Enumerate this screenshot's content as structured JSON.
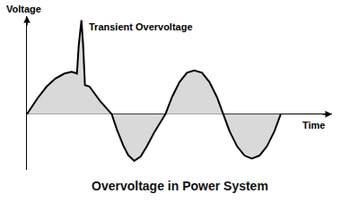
{
  "chart_data": {
    "type": "area",
    "title": "Overvoltage in Power System",
    "x_label": "Time",
    "y_label": "Voltage",
    "annotation": "Transient Overvoltage",
    "x": [
      0,
      0.43,
      0.79,
      1.14,
      1.5,
      1.79,
      2.0,
      2.07,
      2.18,
      2.25,
      2.32,
      2.5,
      2.93,
      3.39,
      3.6,
      3.85,
      4.05,
      4.29,
      4.55,
      4.8,
      5.1,
      5.54,
      5.8,
      6.1,
      6.4,
      6.69,
      7.0,
      7.3,
      7.6,
      7.84,
      8.1,
      8.4,
      8.7,
      8.99,
      9.3,
      9.6,
      9.9,
      10.15
    ],
    "values": [
      0,
      0.36,
      0.62,
      0.8,
      0.91,
      0.95,
      0.91,
      1.53,
      2.11,
      1.53,
      0.65,
      0.62,
      0.29,
      0,
      -0.35,
      -0.7,
      -0.92,
      -1.05,
      -0.95,
      -0.72,
      -0.4,
      0,
      0.38,
      0.72,
      0.93,
      0.98,
      0.93,
      0.72,
      0.38,
      0,
      -0.38,
      -0.72,
      -0.93,
      -1.0,
      -0.93,
      -0.72,
      -0.38,
      0
    ],
    "color": "#d9d9d9",
    "xlim": [
      0,
      12.2
    ],
    "ylim": [
      -1.25,
      2.2
    ],
    "xticks": [],
    "yticks": [],
    "tick_labels": false,
    "grid": false
  }
}
